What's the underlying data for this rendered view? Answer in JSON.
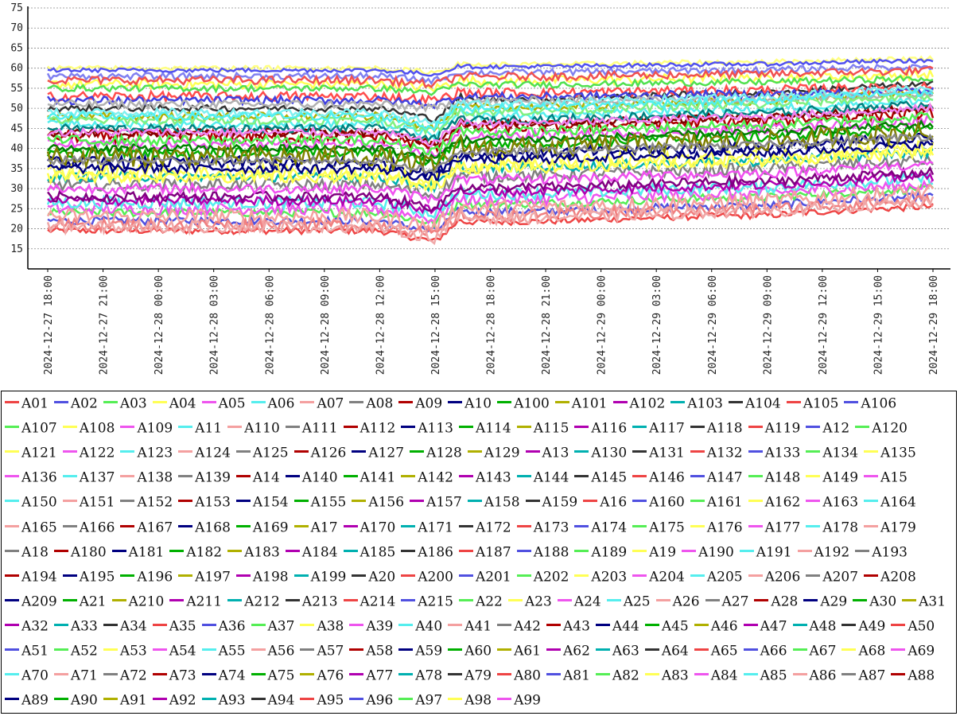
{
  "chart_data": {
    "type": "line",
    "title": "",
    "xlabel": "",
    "ylabel": "",
    "ylim": [
      10,
      75
    ],
    "y_ticks": [
      15,
      20,
      25,
      30,
      35,
      40,
      45,
      50,
      55,
      60,
      65,
      70,
      75
    ],
    "grid": true,
    "legend_position": "bottom",
    "x_tick_labels": [
      "2024-12-27  18:00",
      "2024-12-27  21:00",
      "2024-12-28  00:00",
      "2024-12-28  03:00",
      "2024-12-28  06:00",
      "2024-12-28  09:00",
      "2024-12-28  12:00",
      "2024-12-28  15:00",
      "2024-12-28  18:00",
      "2024-12-28  21:00",
      "2024-12-29  00:00",
      "2024-12-29  03:00",
      "2024-12-29  06:00",
      "2024-12-29  09:00",
      "2024-12-29  12:00",
      "2024-12-29  15:00",
      "2024-12-29  18:00"
    ],
    "x_hours": [
      0,
      3,
      6,
      9,
      12,
      15,
      18,
      21,
      24,
      27,
      30,
      33,
      36,
      39,
      42,
      45,
      48
    ],
    "palette": [
      "#ff4c4c",
      "#4c4cff",
      "#4cff4c",
      "#ffff4c",
      "#ff4cff",
      "#4cffff",
      "#ffb4b4",
      "#808080",
      "#b40000",
      "#000080",
      "#00b400",
      "#b4b400",
      "#b400b4",
      "#00b4b4",
      "#333333",
      "#ff5050",
      "#4040e0",
      "#50e050"
    ],
    "series": [
      {
        "name": "A01",
        "color": "#ee4444",
        "base": 19.5,
        "amp": 0.8
      },
      {
        "name": "A02",
        "color": "#5050e0",
        "base": 22,
        "amp": 1.0
      },
      {
        "name": "A03",
        "color": "#55ee55",
        "base": 24,
        "amp": 1.0
      },
      {
        "name": "A04",
        "color": "#ffff55",
        "base": 56,
        "amp": 1.2
      },
      {
        "name": "A05",
        "color": "#ee55ee",
        "base": 25,
        "amp": 1.5
      },
      {
        "name": "A06",
        "color": "#55eeee",
        "base": 26.5,
        "amp": 1.5
      },
      {
        "name": "A07",
        "color": "#f4a0a0",
        "base": 23,
        "amp": 2.0
      },
      {
        "name": "A08",
        "color": "#808080",
        "base": 31,
        "amp": 1.5
      },
      {
        "name": "A09",
        "color": "#b00000",
        "base": 43,
        "amp": 1.5
      },
      {
        "name": "A10",
        "color": "#000080",
        "base": 36.5,
        "amp": 1.5
      },
      {
        "name": "A100",
        "color": "#00b000",
        "base": 39,
        "amp": 1.2
      },
      {
        "name": "A101",
        "color": "#b0b000",
        "base": 48,
        "amp": 1.0
      },
      {
        "name": "A102",
        "color": "#b000b0",
        "base": 27,
        "amp": 1.2
      },
      {
        "name": "A103",
        "color": "#00b0b0",
        "base": 33,
        "amp": 1.2
      },
      {
        "name": "A104",
        "color": "#333333",
        "base": 50,
        "amp": 0.8
      },
      {
        "name": "A105",
        "color": "#ff4c4c",
        "base": 53,
        "amp": 1.2
      },
      {
        "name": "A106",
        "color": "#4040e0",
        "base": 52,
        "amp": 1.0
      },
      {
        "name": "A107",
        "color": "#50e050",
        "base": 55,
        "amp": 0.8
      },
      {
        "name": "A108",
        "color": "#ffff55",
        "base": 34,
        "amp": 2.0
      },
      {
        "name": "A109",
        "color": "#ee55ee",
        "base": 41,
        "amp": 1.2
      },
      {
        "name": "A11",
        "color": "#55eeee",
        "base": 46,
        "amp": 1.0
      },
      {
        "name": "A110",
        "color": "#b0b0b0",
        "base": 51,
        "amp": 1.0
      },
      {
        "name": "A111",
        "color": "#800000",
        "base": 44,
        "amp": 1.0
      },
      {
        "name": "A112",
        "color": "#000080",
        "base": 35,
        "amp": 1.2
      },
      {
        "name": "A113",
        "color": "#008000",
        "base": 40,
        "amp": 1.0
      },
      {
        "name": "A114",
        "color": "#808000",
        "base": 38,
        "amp": 2.5
      },
      {
        "name": "A115",
        "color": "#800080",
        "base": 28,
        "amp": 1.2
      },
      {
        "name": "A116",
        "color": "#008080",
        "base": 45,
        "amp": 1.0
      },
      {
        "name": "A117",
        "color": "#f08080",
        "base": 21,
        "amp": 1.5
      },
      {
        "name": "A118",
        "color": "#8080f0",
        "base": 58,
        "amp": 0.8
      },
      {
        "name": "A119",
        "color": "#80f080",
        "base": 47,
        "amp": 1.0
      },
      {
        "name": "A12",
        "color": "#ffff80",
        "base": 60,
        "amp": 0.6
      },
      {
        "name": "A120",
        "color": "#f080f0",
        "base": 44,
        "amp": 1.0
      },
      {
        "name": "A121",
        "color": "#80f0f0",
        "base": 49,
        "amp": 1.0
      },
      {
        "name": "A122",
        "color": "#f05050",
        "base": 57,
        "amp": 1.0
      },
      {
        "name": "A123",
        "color": "#5050f0",
        "base": 59.5,
        "amp": 0.5
      },
      {
        "name": "A124",
        "color": "#50f050",
        "base": 42,
        "amp": 1.2
      },
      {
        "name": "A125",
        "color": "#ffff50",
        "base": 33,
        "amp": 1.5
      },
      {
        "name": "A126",
        "color": "#f050f0",
        "base": 30,
        "amp": 1.2
      },
      {
        "name": "A127",
        "color": "#50f0f0",
        "base": 48,
        "amp": 1.0
      },
      {
        "name": "A128",
        "color": "#f0a8a8",
        "base": 20.5,
        "amp": 1.5
      },
      {
        "name": "A129",
        "color": "#888888",
        "base": 37,
        "amp": 1.0
      }
    ]
  },
  "legend": {
    "items": [
      "A01",
      "A02",
      "A03",
      "A04",
      "A05",
      "A06",
      "A07",
      "A08",
      "A09",
      "A10",
      "A100",
      "A101",
      "A102",
      "A103",
      "A104",
      "A105",
      "A106",
      "A107",
      "A108",
      "A109",
      "A11",
      "A110",
      "A111",
      "A112",
      "A113",
      "A114",
      "A115",
      "A116",
      "A117",
      "A118",
      "A119",
      "A12",
      "A120",
      "A121",
      "A122",
      "A123",
      "A124",
      "A125",
      "A126",
      "A127",
      "A128",
      "A129",
      "A13",
      "A130",
      "A131",
      "A132",
      "A133",
      "A134",
      "A135",
      "A136",
      "A137",
      "A138",
      "A139",
      "A14",
      "A140",
      "A141",
      "A142",
      "A143",
      "A144",
      "A145",
      "A146",
      "A147",
      "A148",
      "A149",
      "A15",
      "A150",
      "A151",
      "A152",
      "A153",
      "A154",
      "A155",
      "A156",
      "A157",
      "A158",
      "A159",
      "A16",
      "A160",
      "A161",
      "A162",
      "A163",
      "A164",
      "A165",
      "A166",
      "A167",
      "A168",
      "A169",
      "A17",
      "A170",
      "A171",
      "A172",
      "A173",
      "A174",
      "A175",
      "A176",
      "A177",
      "A178",
      "A179",
      "A18",
      "A180",
      "A181",
      "A182",
      "A183",
      "A184",
      "A185",
      "A186",
      "A187",
      "A188",
      "A189",
      "A19",
      "A190",
      "A191",
      "A192",
      "A193",
      "A194",
      "A195",
      "A196",
      "A197",
      "A198",
      "A199",
      "A20",
      "A200",
      "A201",
      "A202",
      "A203",
      "A204",
      "A205",
      "A206",
      "A207",
      "A208",
      "A209",
      "A21",
      "A210",
      "A211",
      "A212",
      "A213",
      "A214",
      "A215",
      "A22",
      "A23",
      "A24",
      "A25",
      "A26",
      "A27",
      "A28",
      "A29",
      "A30",
      "A31",
      "A32",
      "A33",
      "A34",
      "A35",
      "A36",
      "A37",
      "A38",
      "A39",
      "A40",
      "A41",
      "A42",
      "A43",
      "A44",
      "A45",
      "A46",
      "A47",
      "A48",
      "A49",
      "A50",
      "A51",
      "A52",
      "A53",
      "A54",
      "A55",
      "A56",
      "A57",
      "A58",
      "A59",
      "A60",
      "A61",
      "A62",
      "A63",
      "A64",
      "A65",
      "A66",
      "A67",
      "A68",
      "A69",
      "A70",
      "A71",
      "A72",
      "A73",
      "A74",
      "A75",
      "A76",
      "A77",
      "A78",
      "A79",
      "A80",
      "A81",
      "A82",
      "A83",
      "A84",
      "A85",
      "A86",
      "A87",
      "A88",
      "A89",
      "A90",
      "A91",
      "A92",
      "A93",
      "A94",
      "A95",
      "A96",
      "A97",
      "A98",
      "A99"
    ],
    "colors": [
      "#ee4444",
      "#5050e0",
      "#55ee55",
      "#ffff55",
      "#ee55ee",
      "#55eeee",
      "#f4a0a0",
      "#808080",
      "#b00000",
      "#000080",
      "#00b000",
      "#b0b000",
      "#b000b0",
      "#00b0b0",
      "#333333"
    ]
  }
}
